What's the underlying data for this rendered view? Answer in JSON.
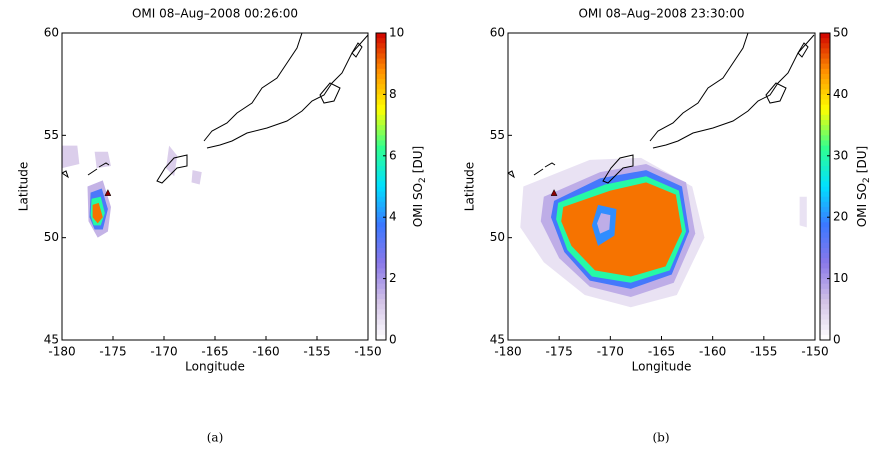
{
  "chart_data": [
    {
      "type": "contour",
      "title": "OMI 08–Aug–2008 00:26:00",
      "xlabel": "Longitude",
      "ylabel": "Latitude",
      "colorbar_label": "OMI SO",
      "colorbar_label_sub": "2",
      "colorbar_label_unit": "[DU]",
      "caption": "(a)",
      "xlim": [
        -180,
        -150
      ],
      "xticks": [
        -180,
        -175,
        -170,
        -165,
        -160,
        -155,
        -150
      ],
      "ylim": [
        45,
        60
      ],
      "yticks": [
        45,
        50,
        55,
        60
      ],
      "clim": [
        0,
        10
      ],
      "cticks": [
        0,
        2,
        4,
        6,
        8,
        10
      ],
      "colormap": [
        "#ffffff",
        "#d2c2e6",
        "#8a78e8",
        "#3c78ff",
        "#00e0ff",
        "#30ff90",
        "#ffff00",
        "#ff9000",
        "#d00000"
      ],
      "markers": [
        {
          "lon": -175.5,
          "lat": 52.2
        }
      ],
      "contours": [
        {
          "level": 1,
          "points": [
            [
              -180,
              54.5
            ],
            [
              -178.5,
              54.5
            ],
            [
              -178.3,
              53.6
            ],
            [
              -180,
              53.4
            ]
          ]
        },
        {
          "level": 1,
          "points": [
            [
              -176.8,
              54.2
            ],
            [
              -175.5,
              54.2
            ],
            [
              -175.2,
              53.5
            ],
            [
              -176.6,
              53.4
            ]
          ]
        },
        {
          "level": 1,
          "points": [
            [
              -169.5,
              54.5
            ],
            [
              -168.7,
              54
            ],
            [
              -169,
              53
            ],
            [
              -169.8,
              53.4
            ]
          ]
        },
        {
          "level": 1,
          "points": [
            [
              -167.2,
              53.3
            ],
            [
              -166.3,
              53.2
            ],
            [
              -166.5,
              52.6
            ],
            [
              -167.3,
              52.7
            ]
          ]
        },
        {
          "level": 1.5,
          "points": [
            [
              -177.5,
              52.5
            ],
            [
              -176,
              52.8
            ],
            [
              -175.2,
              51.5
            ],
            [
              -175.5,
              50.3
            ],
            [
              -176.5,
              50
            ],
            [
              -177.4,
              50.8
            ]
          ]
        },
        {
          "level": 3.5,
          "points": [
            [
              -177.2,
              52.2
            ],
            [
              -176.1,
              52.4
            ],
            [
              -175.5,
              51.4
            ],
            [
              -176,
              50.4
            ],
            [
              -176.8,
              50.4
            ],
            [
              -177.3,
              51
            ]
          ]
        },
        {
          "level": 6,
          "points": [
            [
              -177.1,
              51.9
            ],
            [
              -176.2,
              52
            ],
            [
              -175.8,
              51.2
            ],
            [
              -176.2,
              50.6
            ],
            [
              -176.9,
              50.6
            ],
            [
              -177.2,
              51.1
            ]
          ]
        },
        {
          "level": 9,
          "points": [
            [
              -177,
              51.6
            ],
            [
              -176.4,
              51.7
            ],
            [
              -176,
              51
            ],
            [
              -176.5,
              50.7
            ],
            [
              -177,
              51
            ]
          ]
        }
      ]
    },
    {
      "type": "contour",
      "title": "OMI 08–Aug–2008 23:30:00",
      "xlabel": "Longitude",
      "ylabel": "Latitude",
      "colorbar_label": "OMI SO",
      "colorbar_label_sub": "2",
      "colorbar_label_unit": "[DU]",
      "caption": "(b)",
      "xlim": [
        -180,
        -150
      ],
      "xticks": [
        -180,
        -175,
        -170,
        -165,
        -160,
        -155,
        -150
      ],
      "ylim": [
        45,
        60
      ],
      "yticks": [
        45,
        50,
        55,
        60
      ],
      "clim": [
        0,
        50
      ],
      "cticks": [
        0,
        10,
        20,
        30,
        40,
        50
      ],
      "colormap": [
        "#ffffff",
        "#d2c2e6",
        "#8a78e8",
        "#3c78ff",
        "#00e0ff",
        "#30ff90",
        "#ffff00",
        "#ff9000",
        "#d00000"
      ],
      "markers": [
        {
          "lon": -175.5,
          "lat": 52.2
        }
      ],
      "contours": [
        {
          "level": 3,
          "points": [
            [
              -178.5,
              52.5
            ],
            [
              -172,
              53.8
            ],
            [
              -167,
              53.9
            ],
            [
              -162,
              52.5
            ],
            [
              -160.8,
              50
            ],
            [
              -163.5,
              47.2
            ],
            [
              -168,
              46.6
            ],
            [
              -172.5,
              47.2
            ],
            [
              -176.5,
              48.8
            ],
            [
              -178.8,
              50.5
            ]
          ]
        },
        {
          "level": 3,
          "points": [
            [
              -151.5,
              52
            ],
            [
              -150.8,
              52
            ],
            [
              -150.8,
              50.5
            ],
            [
              -151.5,
              50.6
            ]
          ]
        },
        {
          "level": 8,
          "points": [
            [
              -176.5,
              52
            ],
            [
              -171,
              53.2
            ],
            [
              -166.5,
              53.6
            ],
            [
              -162.6,
              52.7
            ],
            [
              -161.7,
              50.2
            ],
            [
              -163.8,
              47.8
            ],
            [
              -168,
              47.1
            ],
            [
              -172,
              47.6
            ],
            [
              -175,
              49
            ],
            [
              -176.8,
              50.8
            ]
          ]
        },
        {
          "level": 18,
          "points": [
            [
              -175.5,
              51.8
            ],
            [
              -171,
              52.9
            ],
            [
              -166.5,
              53.3
            ],
            [
              -163,
              52.5
            ],
            [
              -162.3,
              50.3
            ],
            [
              -164,
              48.2
            ],
            [
              -168,
              47.5
            ],
            [
              -172,
              47.9
            ],
            [
              -174.5,
              49.3
            ],
            [
              -175.8,
              51
            ]
          ]
        },
        {
          "level": 30,
          "points": [
            [
              -175.1,
              51.7
            ],
            [
              -170.5,
              52.6
            ],
            [
              -166.5,
              53
            ],
            [
              -163.3,
              52.3
            ],
            [
              -162.6,
              50.3
            ],
            [
              -164.2,
              48.4
            ],
            [
              -168,
              47.8
            ],
            [
              -171.8,
              48.1
            ],
            [
              -174.2,
              49.4
            ],
            [
              -175.3,
              50.9
            ]
          ]
        },
        {
          "level": 45,
          "points": [
            [
              -174.6,
              51.5
            ],
            [
              -170,
              52.3
            ],
            [
              -166.5,
              52.7
            ],
            [
              -163.6,
              52.1
            ],
            [
              -163,
              50.3
            ],
            [
              -164.6,
              48.6
            ],
            [
              -168,
              48.1
            ],
            [
              -171.5,
              48.4
            ],
            [
              -173.8,
              49.6
            ],
            [
              -174.8,
              50.8
            ]
          ]
        },
        {
          "level": 20,
          "points": [
            [
              -171.2,
              51.6
            ],
            [
              -169.4,
              51.4
            ],
            [
              -169.6,
              50.1
            ],
            [
              -171.2,
              49.6
            ],
            [
              -171.8,
              50.6
            ]
          ]
        },
        {
          "level": 8,
          "points": [
            [
              -170.9,
              51.2
            ],
            [
              -170,
              51.1
            ],
            [
              -170.1,
              50.4
            ],
            [
              -171,
              50.2
            ],
            [
              -171.3,
              50.7
            ]
          ]
        }
      ]
    }
  ]
}
